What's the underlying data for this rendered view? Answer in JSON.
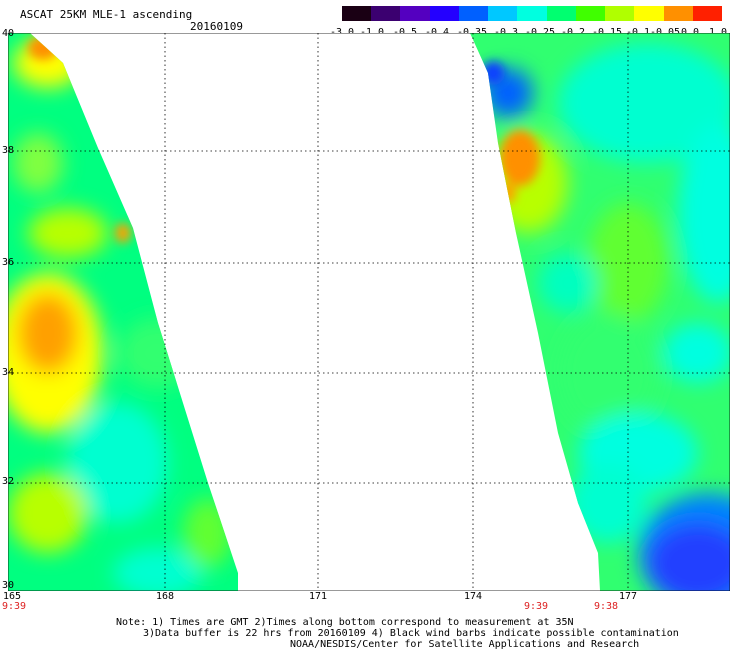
{
  "header": {
    "title": "ASCAT 25KM MLE-1 ascending",
    "date": "20160109"
  },
  "colorbar": {
    "labels": [
      "-3.0",
      "-1.0",
      "-0.5",
      "-0.4",
      "-0.35",
      "-0.3",
      "-0.25",
      "-0.2",
      "-0.15",
      "-0.1",
      "-0.05",
      "0.0",
      "1.0"
    ],
    "colors": [
      "#1a0014",
      "#3b0070",
      "#5400c0",
      "#2400ff",
      "#0060ff",
      "#00c8ff",
      "#00ffe0",
      "#00ff70",
      "#40ff00",
      "#b0ff00",
      "#ffff00",
      "#ff9000",
      "#ff2000"
    ]
  },
  "map": {
    "lat_labels": [
      "40",
      "38",
      "36",
      "34",
      "32",
      "30"
    ],
    "lon_labels": [
      "165",
      "168",
      "171",
      "174",
      "177"
    ],
    "times": [
      "9:39",
      "9:39",
      "9:38"
    ]
  },
  "notes": {
    "line1": "Note: 1) Times are GMT 2)Times along bottom correspond to measurement at 35N",
    "line2": "3)Data buffer is 22 hrs from 20160109 4) Black wind barbs indicate possible contamination",
    "line3": "NOAA/NESDIS/Center for Satellite Applications and Research"
  }
}
